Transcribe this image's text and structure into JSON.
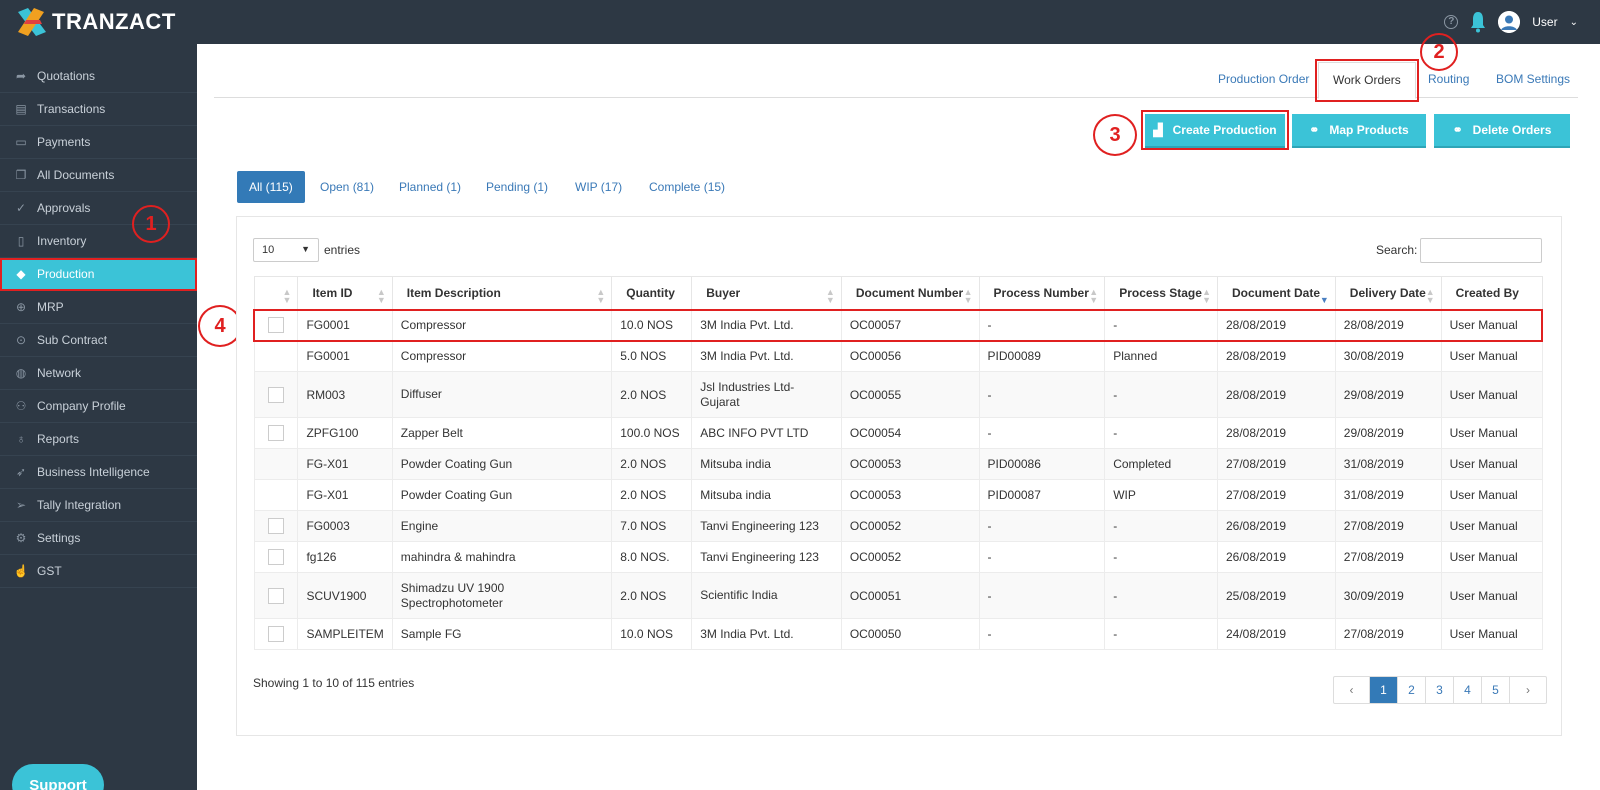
{
  "app": {
    "brand": "TRANZACT"
  },
  "topbar": {
    "help_glyph": "?",
    "user_label": "User"
  },
  "sidebar": {
    "items": [
      {
        "label": "Quotations",
        "icon": "share-icon"
      },
      {
        "label": "Transactions",
        "icon": "book-icon"
      },
      {
        "label": "Payments",
        "icon": "money-icon"
      },
      {
        "label": "All Documents",
        "icon": "documents-icon"
      },
      {
        "label": "Approvals",
        "icon": "check-circle-icon"
      },
      {
        "label": "Inventory",
        "icon": "clipboard-icon"
      },
      {
        "label": "Production",
        "icon": "tags-icon",
        "active": true
      },
      {
        "label": "MRP",
        "icon": "crosshair-icon"
      },
      {
        "label": "Sub Contract",
        "icon": "arrow-circle-icon"
      },
      {
        "label": "Network",
        "icon": "globe-icon"
      },
      {
        "label": "Company Profile",
        "icon": "user-icon"
      },
      {
        "label": "Reports",
        "icon": "lightbulb-icon"
      },
      {
        "label": "Business Intelligence",
        "icon": "rocket-icon"
      },
      {
        "label": "Tally Integration",
        "icon": "send-icon"
      },
      {
        "label": "Settings",
        "icon": "gear-icon"
      },
      {
        "label": "GST",
        "icon": "hand-icon"
      }
    ],
    "support_label": "Support"
  },
  "annotations": {
    "a1": "1",
    "a2": "2",
    "a3": "3",
    "a4": "4"
  },
  "top_tabs": [
    {
      "label": "Production Order"
    },
    {
      "label": "Work Orders",
      "active": true
    },
    {
      "label": "Routing"
    },
    {
      "label": "BOM Settings"
    }
  ],
  "actions": {
    "create": "Create Production",
    "map": "Map Products",
    "delete": "Delete Orders"
  },
  "status_tabs": [
    {
      "label": "All (115)",
      "active": true
    },
    {
      "label": "Open (81)"
    },
    {
      "label": "Planned (1)"
    },
    {
      "label": "Pending (1)"
    },
    {
      "label": "WIP (17)"
    },
    {
      "label": "Complete (15)"
    }
  ],
  "table_controls": {
    "page_size": "10",
    "entries_label": "entries",
    "search_label": "Search:"
  },
  "table": {
    "columns": [
      "Item ID",
      "Item Description",
      "Quantity",
      "Buyer",
      "Document Number",
      "Process Number",
      "Process Stage",
      "Document Date",
      "Delivery Date",
      "Created By"
    ],
    "rows": [
      {
        "checkbox": true,
        "item_id": "FG0001",
        "desc": "Compressor",
        "qty": "10.0 NOS",
        "buyer": "3M India Pvt. Ltd.",
        "doc": "OC00057",
        "proc": "-",
        "stage": "-",
        "doc_date": "28/08/2019",
        "del_date": "28/08/2019",
        "by": "User Manual"
      },
      {
        "checkbox": false,
        "item_id": "FG0001",
        "desc": "Compressor",
        "qty": "5.0 NOS",
        "buyer": "3M India Pvt. Ltd.",
        "doc": "OC00056",
        "proc": "PID00089",
        "stage": "Planned",
        "doc_date": "28/08/2019",
        "del_date": "30/08/2019",
        "by": "User Manual"
      },
      {
        "checkbox": true,
        "item_id": "RM003",
        "desc": "Diffuser",
        "qty": "2.0 NOS",
        "buyer": "Jsl Industries Ltd-Gujarat",
        "doc": "OC00055",
        "proc": "-",
        "stage": "-",
        "doc_date": "28/08/2019",
        "del_date": "29/08/2019",
        "by": "User Manual"
      },
      {
        "checkbox": true,
        "item_id": "ZPFG100",
        "desc": "Zapper Belt",
        "qty": "100.0 NOS",
        "buyer": "ABC INFO PVT LTD",
        "doc": "OC00054",
        "proc": "-",
        "stage": "-",
        "doc_date": "28/08/2019",
        "del_date": "29/08/2019",
        "by": "User Manual"
      },
      {
        "checkbox": false,
        "item_id": "FG-X01",
        "desc": "Powder Coating Gun",
        "qty": "2.0 NOS",
        "buyer": "Mitsuba india",
        "doc": "OC00053",
        "proc": "PID00086",
        "stage": "Completed",
        "doc_date": "27/08/2019",
        "del_date": "31/08/2019",
        "by": "User Manual"
      },
      {
        "checkbox": false,
        "item_id": "FG-X01",
        "desc": "Powder Coating Gun",
        "qty": "2.0 NOS",
        "buyer": "Mitsuba india",
        "doc": "OC00053",
        "proc": "PID00087",
        "stage": "WIP",
        "doc_date": "27/08/2019",
        "del_date": "31/08/2019",
        "by": "User Manual"
      },
      {
        "checkbox": true,
        "item_id": "FG0003",
        "desc": "Engine",
        "qty": "7.0 NOS",
        "buyer": "Tanvi Engineering 123",
        "doc": "OC00052",
        "proc": "-",
        "stage": "-",
        "doc_date": "26/08/2019",
        "del_date": "27/08/2019",
        "by": "User Manual"
      },
      {
        "checkbox": true,
        "item_id": "fg126",
        "desc": "mahindra & mahindra",
        "qty": "8.0 NOS.",
        "buyer": "Tanvi Engineering 123",
        "doc": "OC00052",
        "proc": "-",
        "stage": "-",
        "doc_date": "26/08/2019",
        "del_date": "27/08/2019",
        "by": "User Manual"
      },
      {
        "checkbox": true,
        "item_id": "SCUV1900",
        "desc": "Shimadzu UV 1900 Spectrophotometer",
        "qty": "2.0 NOS",
        "buyer": "Scientific India",
        "doc": "OC00051",
        "proc": "-",
        "stage": "-",
        "doc_date": "25/08/2019",
        "del_date": "30/09/2019",
        "by": "User Manual"
      },
      {
        "checkbox": true,
        "item_id": "SAMPLEITEM",
        "desc": "Sample FG",
        "qty": "10.0 NOS",
        "buyer": "3M India Pvt. Ltd.",
        "doc": "OC00050",
        "proc": "-",
        "stage": "-",
        "doc_date": "24/08/2019",
        "del_date": "27/08/2019",
        "by": "User Manual"
      }
    ]
  },
  "footer": {
    "showing": "Showing 1 to 10 of 115 entries",
    "pages": [
      "1",
      "2",
      "3",
      "4",
      "5"
    ],
    "prev": "‹",
    "next": "›"
  },
  "colors": {
    "sidebar_bg": "#2d3844",
    "accent": "#3bc3d7",
    "primary": "#337ab7",
    "annotation": "#e02020"
  }
}
